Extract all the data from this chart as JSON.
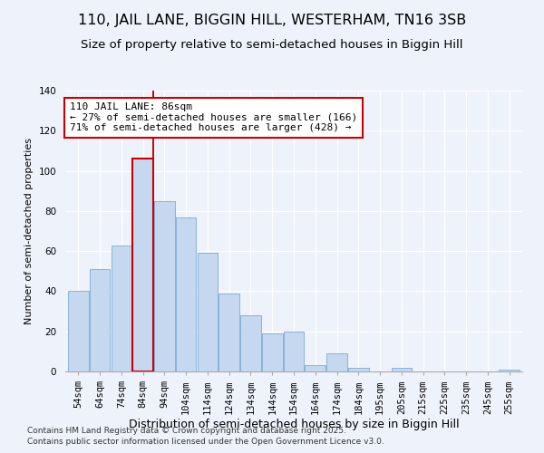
{
  "title": "110, JAIL LANE, BIGGIN HILL, WESTERHAM, TN16 3SB",
  "subtitle": "Size of property relative to semi-detached houses in Biggin Hill",
  "xlabel": "Distribution of semi-detached houses by size in Biggin Hill",
  "ylabel": "Number of semi-detached properties",
  "categories": [
    "54sqm",
    "64sqm",
    "74sqm",
    "84sqm",
    "94sqm",
    "104sqm",
    "114sqm",
    "124sqm",
    "134sqm",
    "144sqm",
    "154sqm",
    "164sqm",
    "174sqm",
    "184sqm",
    "195sqm",
    "205sqm",
    "215sqm",
    "225sqm",
    "235sqm",
    "245sqm",
    "255sqm"
  ],
  "values": [
    40,
    51,
    63,
    106,
    85,
    77,
    59,
    39,
    28,
    19,
    20,
    3,
    9,
    2,
    0,
    2,
    0,
    0,
    0,
    0,
    1
  ],
  "bar_color": "#c5d8f0",
  "bar_edge_color": "#7aabd4",
  "highlight_bar_index": 3,
  "highlight_line_color": "#cc0000",
  "annotation_text": "110 JAIL LANE: 86sqm\n← 27% of semi-detached houses are smaller (166)\n71% of semi-detached houses are larger (428) →",
  "annotation_box_edge": "#cc0000",
  "ylim": [
    0,
    140
  ],
  "yticks": [
    0,
    20,
    40,
    60,
    80,
    100,
    120,
    140
  ],
  "footnote1": "Contains HM Land Registry data © Crown copyright and database right 2025.",
  "footnote2": "Contains public sector information licensed under the Open Government Licence v3.0.",
  "background_color": "#eef2fb",
  "title_fontsize": 11.5,
  "subtitle_fontsize": 9.5,
  "xlabel_fontsize": 9,
  "ylabel_fontsize": 8,
  "tick_fontsize": 7.5,
  "annotation_fontsize": 8,
  "footnote_fontsize": 6.5
}
